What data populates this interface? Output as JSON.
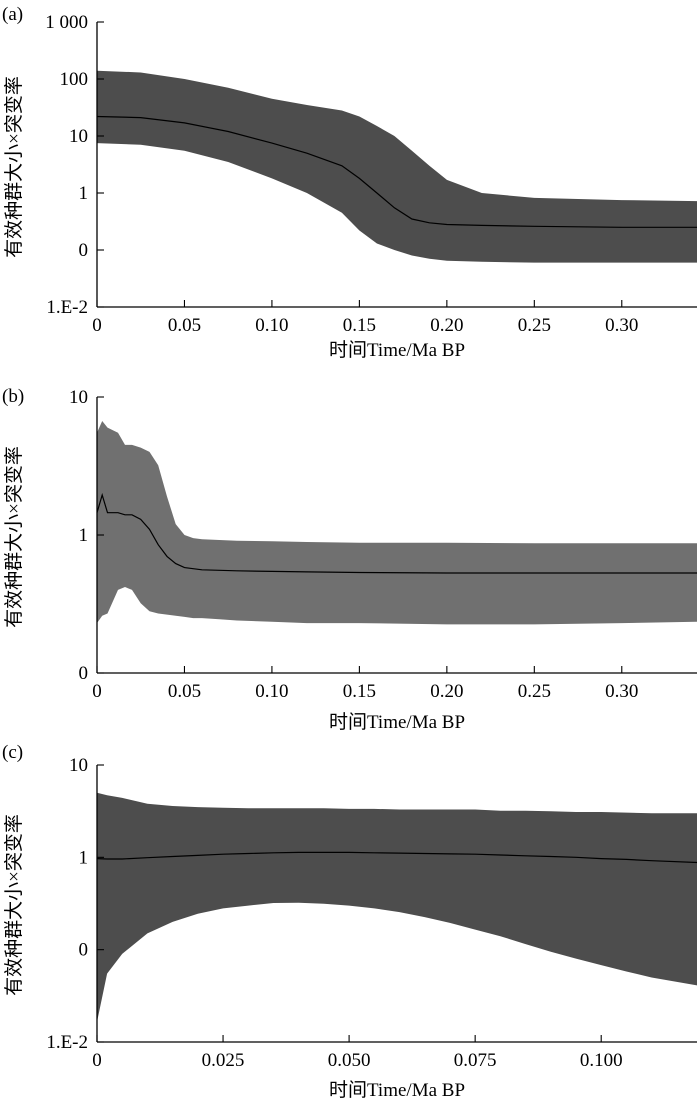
{
  "chart_data": [
    {
      "panel_label": "(a)",
      "type": "area",
      "x_label": "时间Time/Ma BP",
      "y_label": "有效种群大小×突变率",
      "y_scale": "log",
      "xlim": [
        0,
        0.343
      ],
      "ylim": [
        0.01,
        1000
      ],
      "band_color": "#4d4d4d",
      "x_ticks": [
        {
          "value": 0,
          "label": "0"
        },
        {
          "value": 0.05,
          "label": "0.05"
        },
        {
          "value": 0.1,
          "label": "0.10"
        },
        {
          "value": 0.15,
          "label": "0.15"
        },
        {
          "value": 0.2,
          "label": "0.20"
        },
        {
          "value": 0.25,
          "label": "0.25"
        },
        {
          "value": 0.3,
          "label": "0.30"
        }
      ],
      "y_ticks": [
        {
          "value": 1000,
          "label": "1 000"
        },
        {
          "value": 100,
          "label": "100"
        },
        {
          "value": 10,
          "label": "10"
        },
        {
          "value": 1,
          "label": "1"
        },
        {
          "value": 0.1,
          "label": "0"
        },
        {
          "value": 0.01,
          "label": "1.E-2"
        }
      ],
      "x": [
        0,
        0.025,
        0.05,
        0.075,
        0.1,
        0.12,
        0.14,
        0.15,
        0.16,
        0.17,
        0.18,
        0.19,
        0.2,
        0.22,
        0.25,
        0.3,
        0.343
      ],
      "series": [
        {
          "role": "upper",
          "values": [
            140,
            130,
            100,
            70,
            45,
            35,
            28,
            22,
            15,
            10,
            5.5,
            3.0,
            1.7,
            1.0,
            0.82,
            0.75,
            0.72
          ]
        },
        {
          "role": "median",
          "values": [
            22,
            21,
            17,
            12,
            7.5,
            5.0,
            3.0,
            1.8,
            1.0,
            0.55,
            0.35,
            0.3,
            0.28,
            0.27,
            0.26,
            0.25,
            0.25
          ]
        },
        {
          "role": "lower",
          "values": [
            7.5,
            7.0,
            5.5,
            3.5,
            1.8,
            1.0,
            0.45,
            0.22,
            0.13,
            0.1,
            0.08,
            0.07,
            0.065,
            0.062,
            0.06,
            0.06,
            0.06
          ]
        }
      ]
    },
    {
      "panel_label": "(b)",
      "type": "area",
      "x_label": "时间Time/Ma BP",
      "y_label": "有效种群大小×突变率",
      "y_scale": "log",
      "xlim": [
        0,
        0.343
      ],
      "ylim": [
        0.1,
        10
      ],
      "band_color": "#707070",
      "x_ticks": [
        {
          "value": 0,
          "label": "0"
        },
        {
          "value": 0.05,
          "label": "0.05"
        },
        {
          "value": 0.1,
          "label": "0.10"
        },
        {
          "value": 0.15,
          "label": "0.15"
        },
        {
          "value": 0.2,
          "label": "0.20"
        },
        {
          "value": 0.25,
          "label": "0.25"
        },
        {
          "value": 0.3,
          "label": "0.30"
        }
      ],
      "y_ticks": [
        {
          "value": 10,
          "label": "10"
        },
        {
          "value": 1,
          "label": "1"
        },
        {
          "value": 0.1,
          "label": "0"
        }
      ],
      "x": [
        0,
        0.003,
        0.006,
        0.012,
        0.016,
        0.02,
        0.025,
        0.03,
        0.035,
        0.04,
        0.045,
        0.05,
        0.055,
        0.06,
        0.07,
        0.08,
        0.1,
        0.12,
        0.15,
        0.2,
        0.25,
        0.3,
        0.343
      ],
      "series": [
        {
          "role": "upper",
          "values": [
            5.5,
            6.7,
            6.0,
            5.5,
            4.5,
            4.5,
            4.3,
            4.0,
            3.2,
            1.9,
            1.2,
            1.0,
            0.95,
            0.93,
            0.92,
            0.91,
            0.9,
            0.89,
            0.88,
            0.88,
            0.87,
            0.87,
            0.87
          ]
        },
        {
          "role": "median",
          "values": [
            1.45,
            1.95,
            1.45,
            1.45,
            1.4,
            1.4,
            1.3,
            1.1,
            0.85,
            0.7,
            0.62,
            0.58,
            0.57,
            0.56,
            0.555,
            0.55,
            0.545,
            0.54,
            0.535,
            0.53,
            0.53,
            0.53,
            0.53
          ]
        },
        {
          "role": "lower",
          "values": [
            0.23,
            0.26,
            0.27,
            0.4,
            0.42,
            0.4,
            0.32,
            0.28,
            0.27,
            0.265,
            0.26,
            0.255,
            0.25,
            0.25,
            0.245,
            0.24,
            0.235,
            0.23,
            0.23,
            0.225,
            0.225,
            0.23,
            0.235
          ]
        }
      ]
    },
    {
      "panel_label": "(c)",
      "type": "area",
      "x_label": "时间Time/Ma BP",
      "y_label": "有效种群大小×突变率",
      "y_scale": "log",
      "xlim": [
        0,
        0.119
      ],
      "ylim": [
        0.01,
        10
      ],
      "band_color": "#4d4d4d",
      "x_ticks": [
        {
          "value": 0,
          "label": "0"
        },
        {
          "value": 0.025,
          "label": "0.025"
        },
        {
          "value": 0.05,
          "label": "0.050"
        },
        {
          "value": 0.075,
          "label": "0.075"
        },
        {
          "value": 0.1,
          "label": "0.100"
        }
      ],
      "y_ticks": [
        {
          "value": 10,
          "label": "10"
        },
        {
          "value": 1,
          "label": "1"
        },
        {
          "value": 0.1,
          "label": "0"
        },
        {
          "value": 0.01,
          "label": "1.E-2"
        }
      ],
      "x": [
        0,
        0.002,
        0.005,
        0.01,
        0.015,
        0.02,
        0.025,
        0.03,
        0.035,
        0.04,
        0.045,
        0.05,
        0.055,
        0.06,
        0.065,
        0.07,
        0.075,
        0.08,
        0.085,
        0.09,
        0.095,
        0.1,
        0.105,
        0.11,
        0.119
      ],
      "series": [
        {
          "role": "upper",
          "values": [
            5.0,
            4.7,
            4.4,
            3.8,
            3.6,
            3.5,
            3.45,
            3.4,
            3.4,
            3.4,
            3.4,
            3.35,
            3.35,
            3.3,
            3.3,
            3.3,
            3.3,
            3.2,
            3.2,
            3.15,
            3.1,
            3.1,
            3.05,
            3.0,
            3.0
          ]
        },
        {
          "role": "median",
          "values": [
            0.97,
            0.96,
            0.96,
            0.99,
            1.02,
            1.05,
            1.08,
            1.1,
            1.12,
            1.13,
            1.13,
            1.13,
            1.12,
            1.11,
            1.1,
            1.09,
            1.08,
            1.06,
            1.04,
            1.02,
            1.0,
            0.97,
            0.95,
            0.92,
            0.88
          ]
        },
        {
          "role": "lower",
          "values": [
            0.0165,
            0.055,
            0.09,
            0.15,
            0.2,
            0.245,
            0.28,
            0.3,
            0.32,
            0.322,
            0.315,
            0.3,
            0.28,
            0.255,
            0.225,
            0.195,
            0.165,
            0.14,
            0.115,
            0.095,
            0.08,
            0.068,
            0.058,
            0.05,
            0.041
          ]
        }
      ]
    }
  ]
}
